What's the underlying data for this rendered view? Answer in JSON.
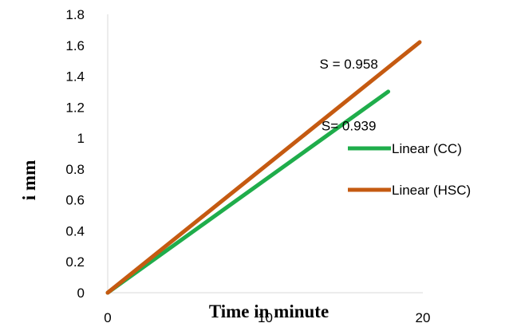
{
  "chart_data": {
    "type": "line",
    "title": "",
    "xlabel": "Time in minute",
    "ylabel": "i mm",
    "xlim": [
      0,
      20
    ],
    "ylim": [
      0,
      1.8
    ],
    "x_ticks": [
      "0",
      "10",
      "20"
    ],
    "y_ticks": [
      "0",
      "0.2",
      "0.4",
      "0.6",
      "0.8",
      "1",
      "1.2",
      "1.4",
      "1.6",
      "1.8"
    ],
    "grid": false,
    "legend_position": "right",
    "series": [
      {
        "name": "Linear (CC)",
        "color": "#1fad4b",
        "x": [
          0,
          17.8
        ],
        "y": [
          0,
          1.3
        ]
      },
      {
        "name": "Linear (HSC)",
        "color": "#c55a11",
        "x": [
          0,
          19.8
        ],
        "y": [
          0,
          1.62
        ]
      }
    ],
    "annotations": [
      {
        "text": "S = 0.958",
        "x": 15.3,
        "y": 1.45
      },
      {
        "text": "S= 0.939",
        "x": 15.3,
        "y": 1.05
      }
    ]
  }
}
